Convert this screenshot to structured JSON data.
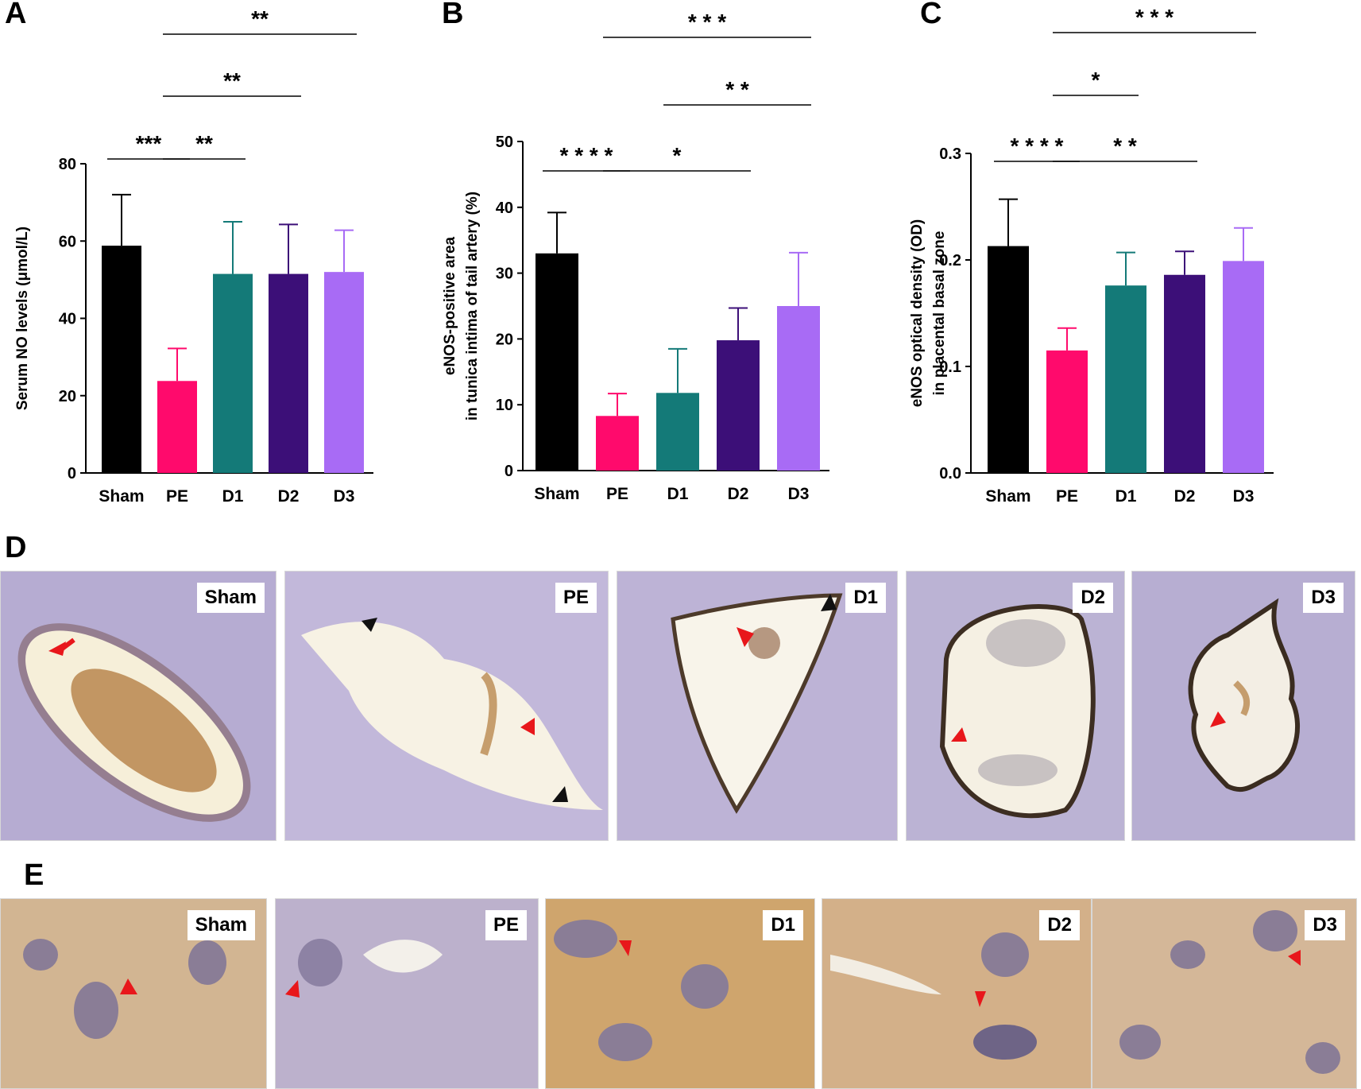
{
  "panels": {
    "A": "A",
    "B": "B",
    "C": "C",
    "D": "D",
    "E": "E"
  },
  "colors": {
    "Sham": "#000000",
    "PE": "#ff0a6c",
    "D1": "#147a78",
    "D2": "#3c0f78",
    "D3": "#a86bf5"
  },
  "chart_data": [
    {
      "type": "bar",
      "panel": "A",
      "categories": [
        "Sham",
        "PE",
        "D1",
        "D2",
        "D3"
      ],
      "values": [
        58.8,
        23.8,
        51.5,
        51.5,
        52.0
      ],
      "errors": [
        13.2,
        8.4,
        13.5,
        12.8,
        10.8
      ],
      "ylabel": "Serum NO levels (μmol/L)",
      "ylim": [
        0,
        80
      ],
      "yticks": [
        "0",
        "20",
        "40",
        "60",
        "80"
      ],
      "significance": [
        {
          "from": 0,
          "to": 1,
          "label": "***"
        },
        {
          "from": 1,
          "to": 2,
          "label": "**"
        },
        {
          "from": 1,
          "to": 3,
          "label": "**"
        },
        {
          "from": 1,
          "to": 4,
          "label": "**"
        }
      ]
    },
    {
      "type": "bar",
      "panel": "B",
      "categories": [
        "Sham",
        "PE",
        "D1",
        "D2",
        "D3"
      ],
      "values": [
        33.0,
        8.3,
        11.8,
        19.8,
        25.0
      ],
      "errors": [
        6.2,
        3.4,
        6.7,
        4.9,
        8.1
      ],
      "ylabel": "eNOS-positive area\nin tunica intima of tail artery (%)",
      "ylim": [
        0,
        50
      ],
      "yticks": [
        "0",
        "10",
        "20",
        "30",
        "40",
        "50"
      ],
      "significance": [
        {
          "from": 0,
          "to": 1,
          "label": "* * * *"
        },
        {
          "from": 1,
          "to": 3,
          "label": "*"
        },
        {
          "from": 2,
          "to": 4,
          "label": "* *"
        },
        {
          "from": 1,
          "to": 4,
          "label": "* * *"
        }
      ]
    },
    {
      "type": "bar",
      "panel": "C",
      "categories": [
        "Sham",
        "PE",
        "D1",
        "D2",
        "D3"
      ],
      "values": [
        0.213,
        0.115,
        0.176,
        0.186,
        0.199
      ],
      "errors": [
        0.044,
        0.021,
        0.031,
        0.022,
        0.031
      ],
      "ylabel": "eNOS optical density (OD)\nin placental basal zone",
      "ylim": [
        0,
        0.3
      ],
      "yticks": [
        "0.0",
        "0.1",
        "0.2",
        "0.3"
      ],
      "significance": [
        {
          "from": 0,
          "to": 1,
          "label": "* * * *"
        },
        {
          "from": 1,
          "to": 3,
          "label": "* *"
        },
        {
          "from": 1,
          "to": 2,
          "label": "*"
        },
        {
          "from": 1,
          "to": 4,
          "label": "* * *"
        }
      ]
    }
  ],
  "image_rows": {
    "D": [
      "Sham",
      "PE",
      "D1",
      "D2",
      "D3"
    ],
    "E": [
      "Sham",
      "PE",
      "D1",
      "D2",
      "D3"
    ]
  }
}
